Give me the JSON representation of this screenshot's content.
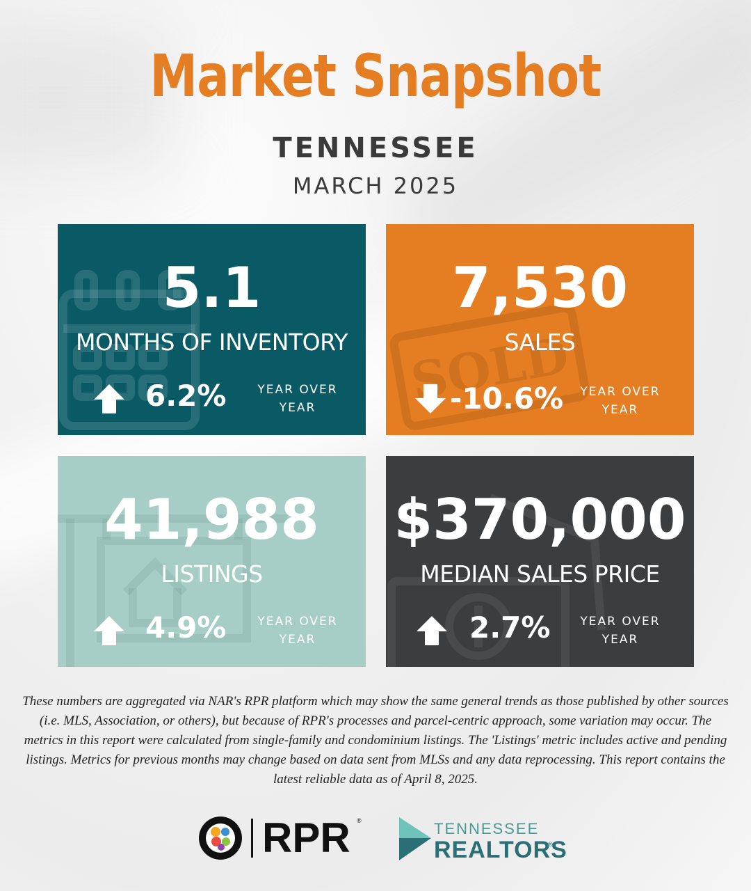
{
  "header": {
    "title": "Market Snapshot",
    "state": "TENNESSEE",
    "period": "MARCH 2025"
  },
  "cards": [
    {
      "value": "5.1",
      "label": "MONTHS OF INVENTORY",
      "change": "6.2%",
      "direction": "up",
      "yoy_line1": "YEAR OVER",
      "yoy_line2": "YEAR",
      "bg_icon": "calendar-icon",
      "color": "#0a5a66"
    },
    {
      "value": "7,530",
      "label": "SALES",
      "change": "-10.6%",
      "direction": "down",
      "yoy_line1": "YEAR OVER",
      "yoy_line2": "YEAR",
      "bg_icon": "sold-stamp-icon",
      "stamp_text": "SOLD",
      "color": "#e57d22"
    },
    {
      "value": "41,988",
      "label": "LISTINGS",
      "change": "4.9%",
      "direction": "up",
      "yoy_line1": "YEAR OVER",
      "yoy_line2": "YEAR",
      "bg_icon": "for-sale-sign-icon",
      "color": "#a6cec6"
    },
    {
      "value": "$370,000",
      "label": "MEDIAN SALES PRICE",
      "change": "2.7%",
      "direction": "up",
      "yoy_line1": "YEAR OVER",
      "yoy_line2": "YEAR",
      "bg_icon": "dollar-bill-icon",
      "color": "#3b3d3e"
    }
  ],
  "disclaimer": "These numbers are aggregated via NAR's RPR platform which may show the same general trends as those published by other sources (i.e. MLS, Association, or others), but because of RPR's processes and parcel-centric approach, some variation may occur. The metrics in this report were calculated from single-family and condominium listings. The 'Listings' metric includes active and pending listings. Metrics for previous months may change based on data sent from MLSs and any data reprocessing. This report contains the latest reliable data as of April 8, 2025.",
  "logos": {
    "rpr": {
      "text": "RPR",
      "reg": "®"
    },
    "tennessee_realtors": {
      "top": "TENNESSEE",
      "bottom": "REALTORS",
      "reg": "®"
    }
  },
  "colors": {
    "title": "#e57d22",
    "teal": "#0a5a66",
    "orange": "#e57d22",
    "mint": "#a6cec6",
    "charcoal": "#3b3d3e"
  }
}
